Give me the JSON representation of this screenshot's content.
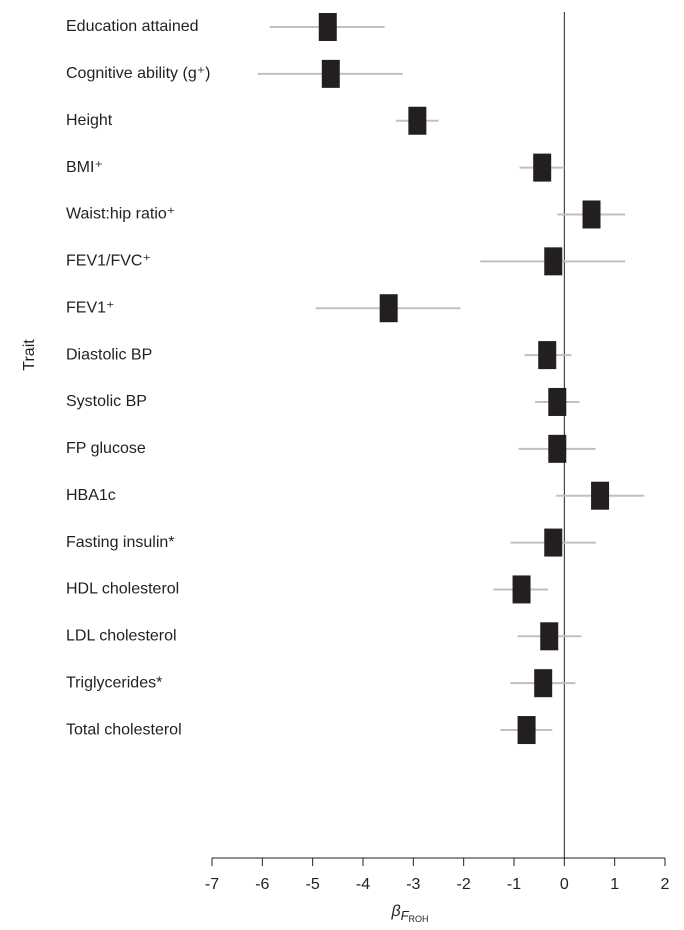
{
  "chart_data": {
    "type": "forest",
    "y_label": "Trait",
    "x_label": [
      "β",
      "F",
      "ROH"
    ],
    "categories": [
      "Education attained",
      "Cognitive ability (g⁺)",
      "Height",
      "BMI⁺",
      "Waist:hip ratio⁺",
      "FEV1/FVC⁺",
      "FEV1⁺",
      "Diastolic BP",
      "Systolic BP",
      "FP glucose",
      "HBA1c",
      "Fasting insulin*",
      "HDL cholesterol",
      "LDL cholesterol",
      "Triglycerides*",
      "Total cholesterol"
    ],
    "values": [
      -4.7,
      -4.64,
      -2.92,
      -0.44,
      0.54,
      -0.22,
      -3.49,
      -0.34,
      -0.14,
      -0.14,
      0.71,
      -0.22,
      -0.85,
      -0.3,
      -0.42,
      -0.75
    ],
    "ci_low": [
      -5.85,
      -6.09,
      -3.35,
      -0.89,
      -0.14,
      -1.67,
      -4.94,
      -0.79,
      -0.58,
      -0.91,
      -0.16,
      -1.07,
      -1.41,
      -0.93,
      -1.07,
      -1.27
    ],
    "ci_high": [
      -3.57,
      -3.21,
      -2.5,
      0,
      1.21,
      1.21,
      -2.06,
      0.14,
      0.3,
      0.62,
      1.59,
      0.63,
      -0.32,
      0.34,
      0.22,
      -0.24
    ],
    "color": "#231f20",
    "ci_color": "#c0c0c0",
    "xlim": [
      -7,
      2
    ],
    "xticks": [
      -7,
      -6,
      -5,
      -4,
      -3,
      -2,
      -1,
      0,
      1,
      2
    ]
  }
}
